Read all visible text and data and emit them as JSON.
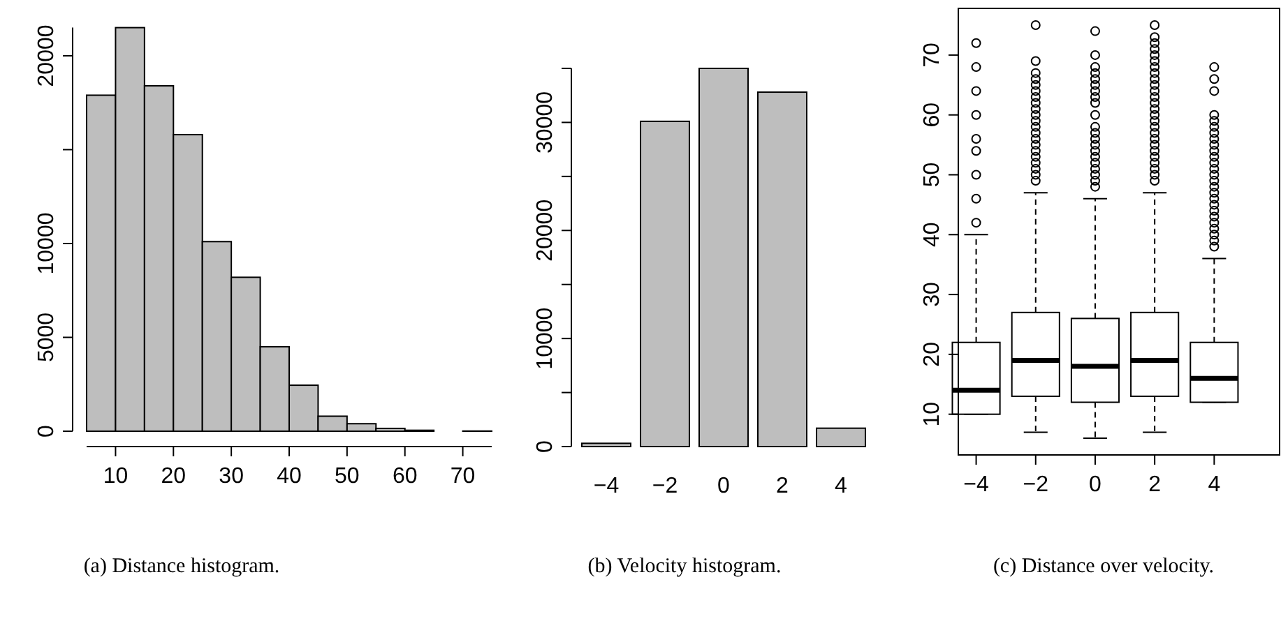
{
  "chart_data": [
    {
      "type": "histogram",
      "annotations": [
        "(a) Distance histogram."
      ],
      "color": "#bebebe",
      "bins": [
        5,
        10,
        15,
        20,
        25,
        30,
        35,
        40,
        45,
        50,
        55,
        60,
        65,
        70,
        75
      ],
      "values": [
        17900,
        21500,
        18400,
        15800,
        10100,
        8200,
        4500,
        2450,
        800,
        400,
        150,
        50,
        null,
        10
      ],
      "xlim": [
        5,
        75
      ],
      "xticks": [
        10,
        20,
        30,
        40,
        50,
        60,
        70
      ],
      "ylim": [
        0,
        21500
      ],
      "yticks": [
        0,
        5000,
        10000,
        {
          "value": 15000,
          "label": null
        },
        20000
      ]
    },
    {
      "type": "bar",
      "annotations": [
        "(b) Velocity histogram."
      ],
      "color": "#bebebe",
      "categories": [
        "−4",
        "−2",
        "0",
        "2",
        "4"
      ],
      "values": [
        300,
        30100,
        35000,
        32800,
        1700
      ],
      "ylim": [
        0,
        35000
      ],
      "yticks": [
        0,
        {
          "value": 5000,
          "label": null
        },
        10000,
        {
          "value": 15000,
          "label": null
        },
        20000,
        {
          "value": 25000,
          "label": null
        },
        30000,
        {
          "value": 35000,
          "label": null
        }
      ]
    },
    {
      "type": "box",
      "annotations": [
        "(c) Distance over velocity."
      ],
      "categories": [
        "−4",
        "−2",
        "0",
        "2",
        "4"
      ],
      "boxes": [
        {
          "low": 10,
          "q1": 10,
          "median": 14,
          "q3": 22,
          "high": 40,
          "outliers": [
            42,
            46,
            50,
            54,
            56,
            60,
            64,
            68,
            72
          ]
        },
        {
          "low": 7,
          "q1": 13,
          "median": 19,
          "q3": 27,
          "high": 47,
          "outliers": [
            49,
            50,
            51,
            52,
            53,
            54,
            55,
            56,
            57,
            58,
            59,
            60,
            61,
            62,
            63,
            64,
            65,
            66,
            67,
            69,
            75
          ]
        },
        {
          "low": 6,
          "q1": 12,
          "median": 18,
          "q3": 26,
          "high": 46,
          "outliers": [
            48,
            49,
            50,
            51,
            52,
            53,
            54,
            55,
            56,
            57,
            58,
            60,
            62,
            63,
            64,
            65,
            66,
            67,
            68,
            70,
            74
          ]
        },
        {
          "low": 7,
          "q1": 13,
          "median": 19,
          "q3": 27,
          "high": 47,
          "outliers": [
            49,
            50,
            51,
            52,
            53,
            54,
            55,
            56,
            57,
            58,
            59,
            60,
            61,
            62,
            63,
            64,
            65,
            66,
            67,
            68,
            69,
            70,
            71,
            72,
            73,
            75
          ]
        },
        {
          "low": 12,
          "q1": 12,
          "median": 16,
          "q3": 22,
          "high": 36,
          "outliers": [
            38,
            39,
            40,
            41,
            42,
            43,
            44,
            45,
            46,
            47,
            48,
            49,
            50,
            51,
            52,
            53,
            54,
            55,
            56,
            57,
            58,
            59,
            60,
            64,
            66,
            68
          ]
        }
      ],
      "ylim": [
        3.2,
        77.8
      ],
      "yticks": [
        10,
        20,
        30,
        40,
        50,
        60,
        70
      ]
    }
  ]
}
